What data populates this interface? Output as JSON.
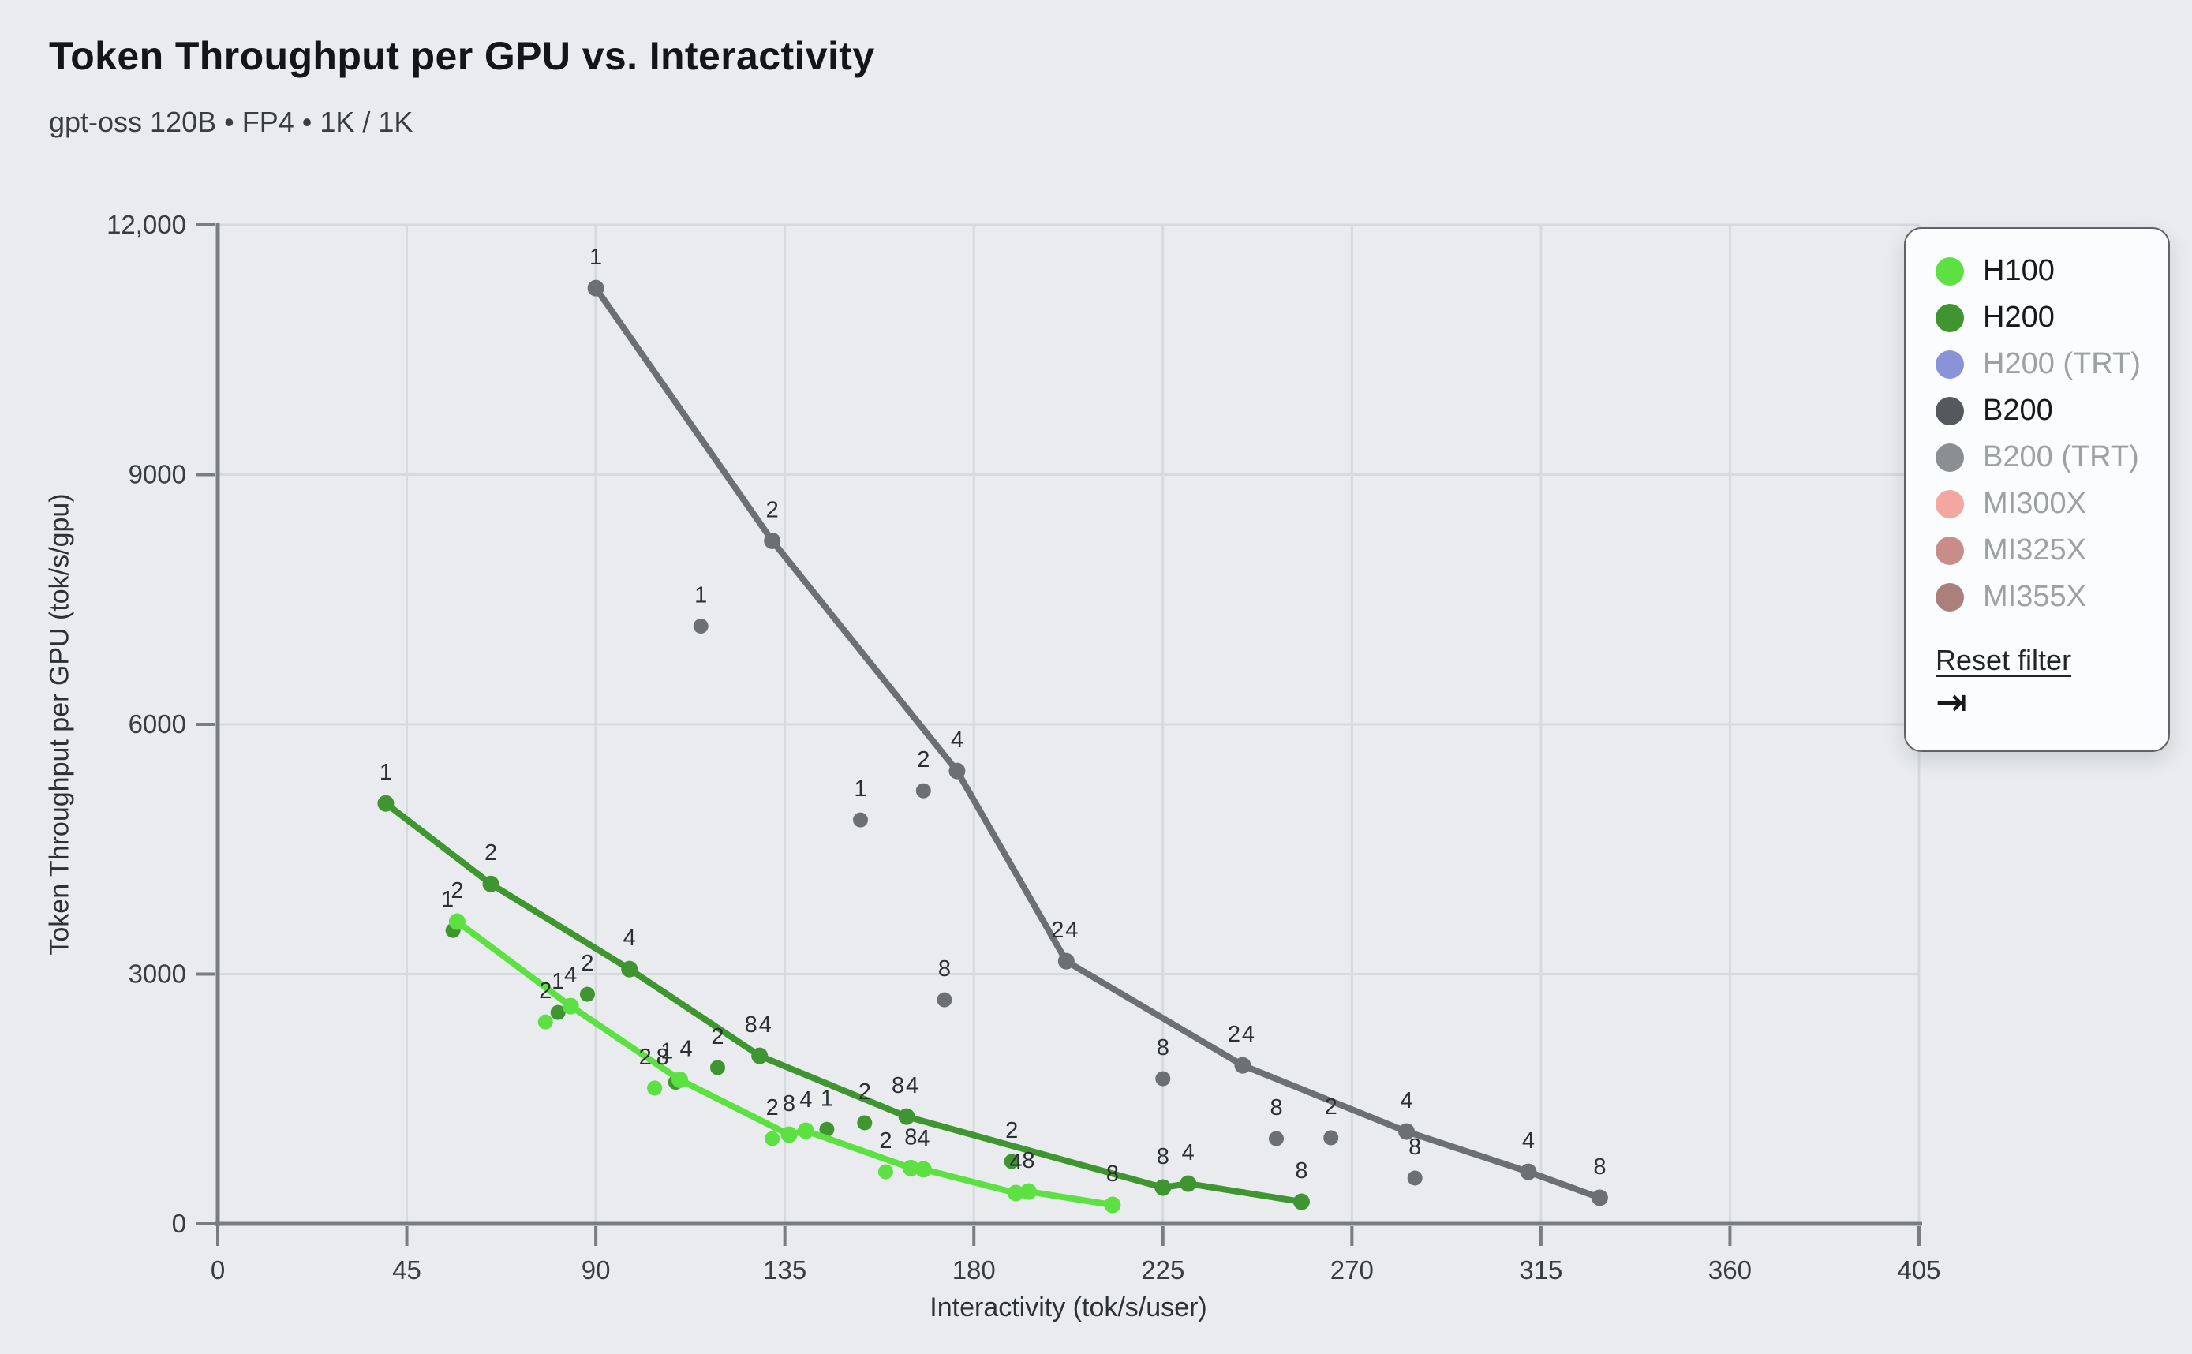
{
  "header": {
    "title": "Token Throughput per GPU vs. Interactivity",
    "subtitle": "gpt-oss 120B • FP4 • 1K / 1K"
  },
  "chart_data": {
    "type": "scatter",
    "title": "Token Throughput per GPU vs. Interactivity",
    "subtitle": "gpt-oss 120B • FP4 • 1K / 1K",
    "xlabel": "Interactivity (tok/s/user)",
    "ylabel": "Token Throughput per GPU (tok/s/gpu)",
    "xlim": [
      0,
      405
    ],
    "ylim": [
      0,
      12000
    ],
    "x_ticks": [
      0,
      45,
      90,
      135,
      180,
      225,
      270,
      315,
      360,
      405
    ],
    "y_ticks": [
      {
        "v": 0,
        "label": "0"
      },
      {
        "v": 3000,
        "label": "3000"
      },
      {
        "v": 6000,
        "label": "6000"
      },
      {
        "v": 9000,
        "label": "9000"
      },
      {
        "v": 12000,
        "label": "12,000"
      }
    ],
    "grid": true,
    "legend_position": "top-right",
    "point_format": "[interactivity tok/s/user, throughput tok/s/gpu, point label, optional label x-offset px]",
    "series": [
      {
        "name": "H100",
        "color": "#5de142",
        "line": [
          [
            57,
            3630,
            "2"
          ],
          [
            84,
            2615,
            "4"
          ],
          [
            110,
            1730,
            "4",
            8
          ],
          [
            136,
            1071,
            "8"
          ],
          [
            140,
            1118,
            "4"
          ],
          [
            165,
            670,
            "8"
          ],
          [
            168,
            655,
            "4"
          ],
          [
            190,
            370,
            "4"
          ],
          [
            193,
            388,
            "8"
          ],
          [
            213,
            227,
            "8"
          ]
        ],
        "scatter": [
          [
            78,
            2425,
            "2"
          ],
          [
            104,
            1630,
            "2",
            -12
          ],
          [
            104,
            1630,
            "8",
            10
          ],
          [
            132,
            1023,
            "2"
          ],
          [
            159,
            625,
            "2"
          ]
        ]
      },
      {
        "name": "H200",
        "color": "#3f9630",
        "line": [
          [
            40,
            5050,
            "1"
          ],
          [
            65,
            4083,
            "2"
          ],
          [
            98,
            3060,
            "4"
          ],
          [
            129,
            2018,
            "4",
            7
          ],
          [
            164,
            1288,
            "4",
            7
          ],
          [
            225,
            436,
            "8"
          ],
          [
            231,
            483,
            "4"
          ],
          [
            258,
            265,
            "8"
          ]
        ],
        "scatter": [
          [
            56,
            3524,
            "1",
            -7
          ],
          [
            81,
            2539,
            "1"
          ],
          [
            88,
            2757,
            "2"
          ],
          [
            109,
            1700,
            "1",
            -11
          ],
          [
            119,
            1876,
            "2"
          ],
          [
            129,
            2018,
            "8",
            -11
          ],
          [
            145,
            1135,
            "1"
          ],
          [
            154,
            1213,
            "2"
          ],
          [
            164,
            1288,
            "8",
            -11
          ],
          [
            189,
            749,
            "2"
          ]
        ]
      },
      {
        "name": "B200",
        "color": "#6d7073",
        "line": [
          [
            90,
            11240,
            "1"
          ],
          [
            132,
            8205,
            "2"
          ],
          [
            176,
            5440,
            "4"
          ],
          [
            202,
            3155,
            "4",
            7
          ],
          [
            244,
            1904,
            "4",
            7
          ],
          [
            283,
            1108,
            "4"
          ],
          [
            312,
            625,
            "4"
          ],
          [
            329,
            313,
            "8"
          ]
        ],
        "scatter": [
          [
            115,
            7180,
            "1"
          ],
          [
            153,
            4852,
            "1"
          ],
          [
            168,
            5202,
            "2"
          ],
          [
            173,
            2691,
            "8"
          ],
          [
            202,
            3155,
            "2",
            -11
          ],
          [
            225,
            1743,
            "8"
          ],
          [
            244,
            1904,
            "2",
            -11
          ],
          [
            252,
            1023,
            "8"
          ],
          [
            265,
            1033,
            "2"
          ],
          [
            285,
            550,
            "8"
          ]
        ]
      }
    ]
  },
  "legend": {
    "items": [
      {
        "label": "H100",
        "color": "#5de142",
        "active": true
      },
      {
        "label": "H200",
        "color": "#3f9630",
        "active": true
      },
      {
        "label": "H200 (TRT)",
        "color": "#8a93d8",
        "active": false
      },
      {
        "label": "B200",
        "color": "#55585c",
        "active": true
      },
      {
        "label": "B200 (TRT)",
        "color": "#8c8f92",
        "active": false
      },
      {
        "label": "MI300X",
        "color": "#f2a8a1",
        "active": false
      },
      {
        "label": "MI325X",
        "color": "#c98d89",
        "active": false
      },
      {
        "label": "MI355X",
        "color": "#aa7f7c",
        "active": false
      }
    ],
    "reset_label": "Reset filter",
    "collapse_icon": "tab-arrow-icon",
    "collapse_glyph": "⇥"
  },
  "style": {
    "background": "#e9ebee",
    "gridline_color": "#d6dade",
    "axis_color": "#7a7d80",
    "tick_text_color": "#3a3d40",
    "point_label_color": "#2c2f32"
  }
}
